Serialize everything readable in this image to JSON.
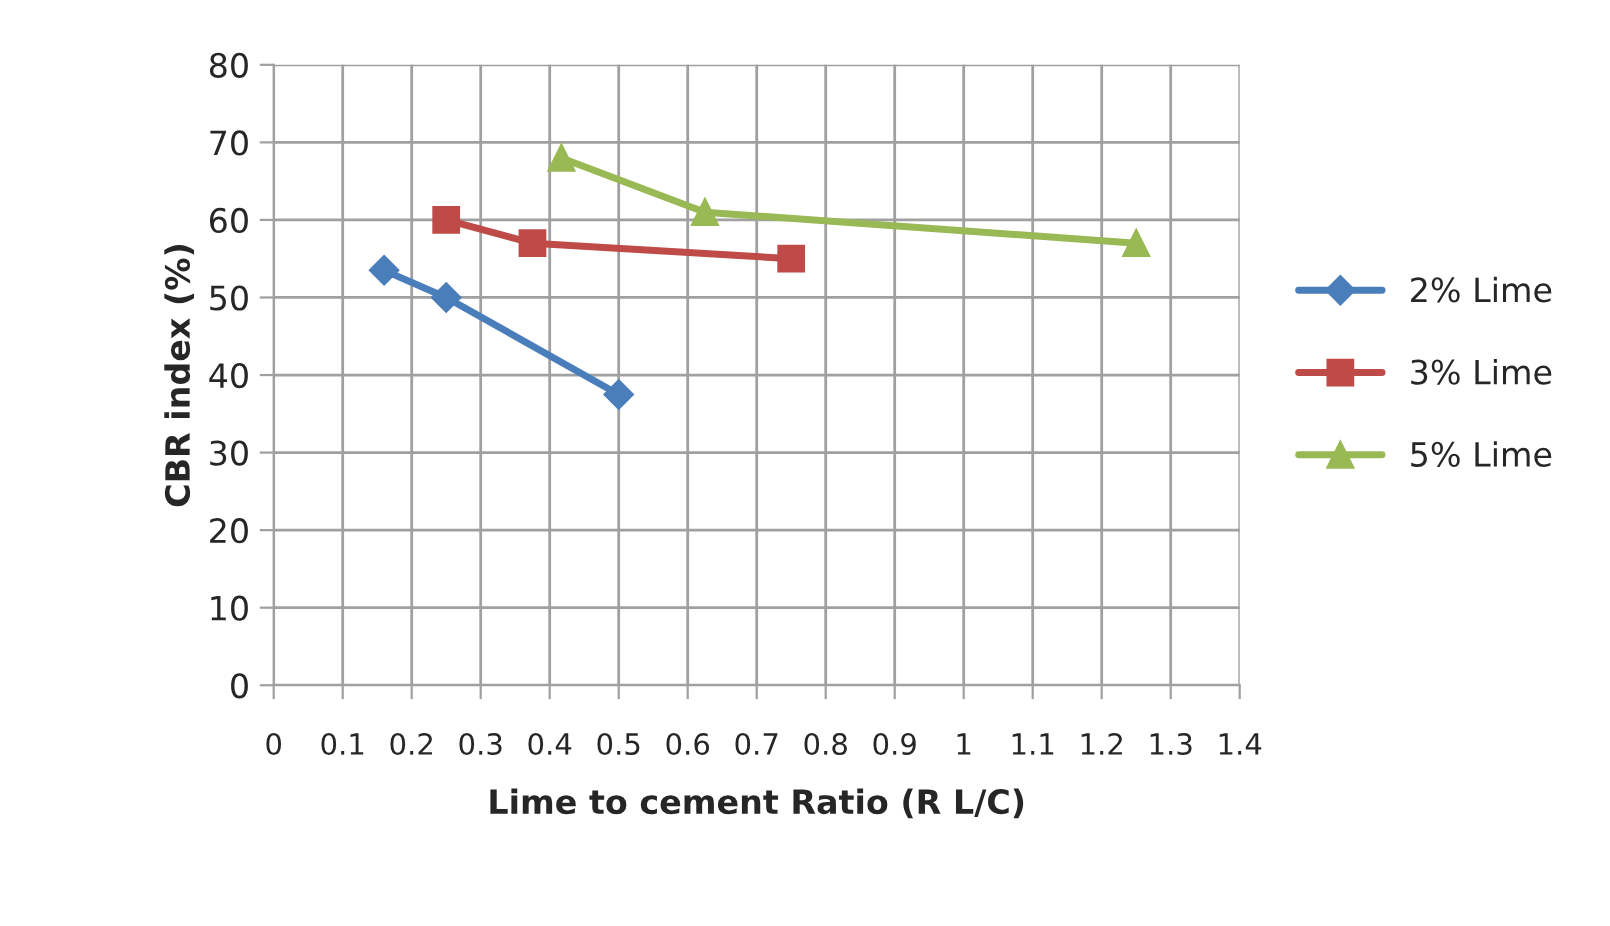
{
  "chart_data": {
    "type": "line",
    "xlabel": "Lime to cement Ratio (R L/C)",
    "ylabel": "CBR index (%)",
    "xlim": [
      0,
      1.4
    ],
    "xticks": [
      0,
      0.1,
      0.2,
      0.3,
      0.4,
      0.5,
      0.6,
      0.7,
      0.8,
      0.9,
      1,
      1.1,
      1.2,
      1.3,
      1.4
    ],
    "ylim": [
      0,
      80
    ],
    "yticks": [
      0,
      10,
      20,
      30,
      40,
      50,
      60,
      70,
      80
    ],
    "grid": true,
    "legend": "right",
    "series": [
      {
        "name": "2% Lime",
        "color": "#4a7ebb",
        "marker": "diamond",
        "x": [
          0.16,
          0.25,
          0.5
        ],
        "values": [
          53.5,
          50,
          37.5
        ]
      },
      {
        "name": "3% Lime",
        "color": "#be4b48",
        "marker": "square",
        "x": [
          0.25,
          0.375,
          0.75
        ],
        "values": [
          60,
          57,
          55
        ]
      },
      {
        "name": "5% Lime",
        "color": "#98b954",
        "marker": "triangle",
        "x": [
          0.417,
          0.625,
          1.25
        ],
        "values": [
          68,
          61,
          57
        ]
      }
    ]
  }
}
